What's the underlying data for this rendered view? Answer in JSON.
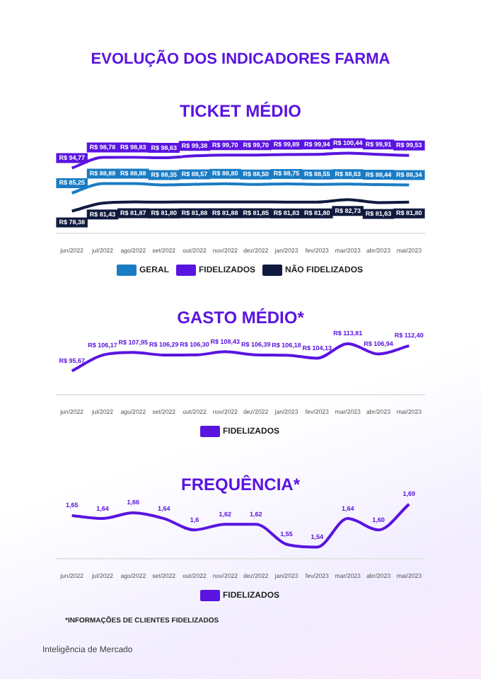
{
  "chart_data": [
    {
      "type": "other",
      "title": "EVOLUÇÃO DOS INDICADORES FARMA",
      "annotations": [
        "Inteligência de Mercado"
      ]
    },
    {
      "type": "line",
      "title": "TICKET MÉDIO",
      "categories": [
        "jun/2022",
        "jul/2022",
        "ago/2022",
        "set/2022",
        "out/2022",
        "nov/2022",
        "dez/2022",
        "jan/2023",
        "fev/2023",
        "mar/2023",
        "abr/2023",
        "mai/2023"
      ],
      "legend": "bottom",
      "series": [
        {
          "name": "GERAL",
          "color": "#1a7cc4",
          "values": [
            85.25,
            88.88,
            88.88,
            88.35,
            88.57,
            88.8,
            88.5,
            88.75,
            88.55,
            88.63,
            88.44,
            88.34
          ],
          "value_labels": [
            "R$ 85,25",
            "R$ 88,88",
            "R$ 88,88",
            "R$ 88,35",
            "R$ 88,57",
            "R$ 88,80",
            "R$ 88,50",
            "R$ 88,75",
            "R$ 88,55",
            "R$ 88,63",
            "R$ 88,44",
            "R$ 88,34"
          ]
        },
        {
          "name": "FIDELIZADOS",
          "color": "#5a14e0",
          "values": [
            94.77,
            98.78,
            98.83,
            98.63,
            99.38,
            99.7,
            99.7,
            99.89,
            99.94,
            100.44,
            99.91,
            99.53
          ],
          "value_labels": [
            "R$ 94,77",
            "R$ 98,78",
            "R$ 98,83",
            "R$ 98,63",
            "R$ 99,38",
            "R$ 99,70",
            "R$ 99,70",
            "R$ 99,89",
            "R$ 99,94",
            "R$ 100,44",
            "R$ 99,91",
            "R$ 99,53"
          ]
        },
        {
          "name": "NÃO FIDELIZADOS",
          "color": "#101a3e",
          "values": [
            78.38,
            81.43,
            81.87,
            81.8,
            81.88,
            81.88,
            81.85,
            81.83,
            81.8,
            82.73,
            81.63,
            81.8
          ],
          "value_labels": [
            "R$ 78,38",
            "R$ 81,43",
            "R$ 81,87",
            "R$ 81,80",
            "R$ 81,88",
            "R$ 81,88",
            "R$ 81,85",
            "R$ 81,83",
            "R$ 81,80",
            "R$ 82,73",
            "R$ 81,63",
            "R$ 81,80"
          ]
        }
      ]
    },
    {
      "type": "line",
      "title": "GASTO MÉDIO*",
      "categories": [
        "jun/2022",
        "jul/2022",
        "ago/2022",
        "set/2022",
        "out/2022",
        "nov/2022",
        "dez/2022",
        "jan/2023",
        "fev/2023",
        "mar/2023",
        "abr/2023",
        "mai/2023"
      ],
      "legend": "bottom",
      "series": [
        {
          "name": "FIDELIZADOS",
          "color": "#5a14e0",
          "values": [
            95.67,
            106.17,
            107.95,
            106.29,
            106.3,
            108.43,
            106.39,
            106.18,
            104.13,
            113.81,
            106.94,
            112.4
          ],
          "value_labels": [
            "R$ 95,67",
            "R$ 106,17",
            "R$ 107,95",
            "R$ 106,29",
            "R$ 106,30",
            "R$ 108,43",
            "R$ 106,39",
            "R$ 106,18",
            "R$ 104,13",
            "R$ 113,81",
            "R$ 106,94",
            "R$ 112,40"
          ]
        }
      ]
    },
    {
      "type": "line",
      "title": "FREQUÊNCIA*",
      "categories": [
        "jun/2022",
        "jul/2022",
        "ago/2022",
        "set/2022",
        "out/2022",
        "nov/2022",
        "dez/2022",
        "jan/2023",
        "fev/2023",
        "mar/2023",
        "abr/2023",
        "mai/2023"
      ],
      "legend": "bottom",
      "annotations": [
        "*INFORMAÇÕES DE CLIENTES FIDELIZADOS"
      ],
      "series": [
        {
          "name": "FIDELIZADOS",
          "color": "#5a14e0",
          "values": [
            1.65,
            1.64,
            1.66,
            1.64,
            1.6,
            1.62,
            1.62,
            1.55,
            1.54,
            1.64,
            1.6,
            1.69
          ],
          "value_labels": [
            "1,65",
            "1,64",
            "1,66",
            "1,64",
            "1,6",
            "1,62",
            "1,62",
            "1,55",
            "1,54",
            "1,64",
            "1,60",
            "1,69"
          ]
        }
      ]
    }
  ]
}
